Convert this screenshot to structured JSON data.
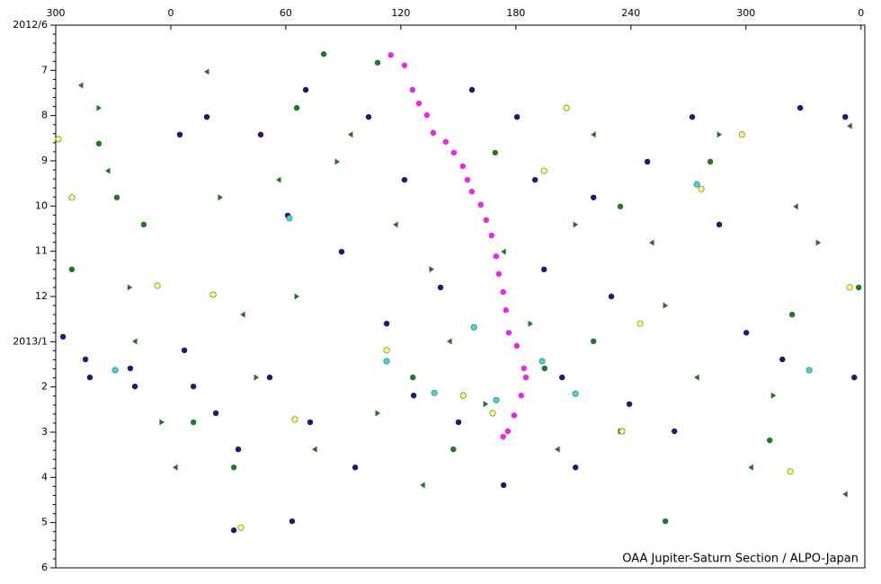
{
  "chart_data": {
    "type": "scatter",
    "credit": "OAA Jupiter-Saturn Section / ALPO-Japan",
    "xlim": [
      300,
      722
    ],
    "xticks": [
      {
        "value": 300,
        "label": "300"
      },
      {
        "value": 360,
        "label": "0"
      },
      {
        "value": 420,
        "label": "60"
      },
      {
        "value": 480,
        "label": "120"
      },
      {
        "value": 540,
        "label": "180"
      },
      {
        "value": 600,
        "label": "240"
      },
      {
        "value": 660,
        "label": "300"
      },
      {
        "value": 720,
        "label": "0"
      }
    ],
    "ylim": [
      0,
      12
    ],
    "yticks": [
      {
        "value": 0,
        "label": "2012/6"
      },
      {
        "value": 1,
        "label": "7"
      },
      {
        "value": 2,
        "label": "8"
      },
      {
        "value": 3,
        "label": "9"
      },
      {
        "value": 4,
        "label": "10"
      },
      {
        "value": 5,
        "label": "11"
      },
      {
        "value": 6,
        "label": "12"
      },
      {
        "value": 7,
        "label": "2013/1"
      },
      {
        "value": 8,
        "label": "2"
      },
      {
        "value": 9,
        "label": "3"
      },
      {
        "value": 10,
        "label": "4"
      },
      {
        "value": 11,
        "label": "5"
      },
      {
        "value": 12,
        "label": "6"
      }
    ],
    "series": [
      {
        "marker": "triangle-left",
        "color": "#2e6b2e",
        "x": [
          313.1,
          327.2,
          341.3,
          362.4,
          378.8,
          397.6,
          416.3,
          435.1,
          453.8,
          477.3,
          491.4,
          505.4,
          533.6,
          561.7,
          580.5,
          610.9,
          634.4,
          662.6,
          686,
          714.1,
          711.8
        ],
        "values": [
          1.33,
          3.22,
          6.99,
          9.78,
          1.03,
          6.4,
          3.42,
          9.38,
          2.42,
          4.41,
          10.17,
          6.99,
          5.01,
          9.38,
          2.42,
          4.81,
          7.79,
          9.78,
          4.01,
          2.23,
          10.37
        ]
      },
      {
        "marker": "triangle-right",
        "color": "#2e6b2e",
        "x": [
          322.5,
          338.6,
          355.3,
          385.8,
          404.6,
          425.7,
          446.8,
          467.9,
          496,
          524.2,
          547.6,
          571.1,
          594.5,
          618,
          646.1,
          674.3,
          697.7
        ],
        "values": [
          1.83,
          5.8,
          8.78,
          3.81,
          7.79,
          6,
          3.02,
          8.58,
          5.4,
          8.38,
          6.6,
          4.41,
          8.98,
          6.2,
          2.42,
          8.19,
          4.81
        ]
      },
      {
        "marker": "circle",
        "color": "#1a1a78",
        "x": [
          303.8,
          315.5,
          317.8,
          338.9,
          341.3,
          364.7,
          367.1,
          371.8,
          378.8,
          383.5,
          395.2,
          406.9,
          411.6,
          421,
          430.4,
          432.7,
          449.1,
          456.2,
          463.2,
          472.6,
          481.9,
          486.7,
          500.7,
          510.1,
          517.1,
          533.6,
          540.6,
          550,
          554.7,
          564.1,
          571.1,
          580.5,
          589.8,
          599.2,
          608.6,
          622.7,
          632,
          646.1,
          660.2,
          679,
          688.3,
          711.8,
          716.5,
          423.3,
          392.9
        ],
        "values": [
          6.89,
          7.39,
          7.79,
          7.59,
          7.99,
          2.42,
          7.19,
          7.99,
          2.03,
          8.58,
          9.38,
          2.42,
          7.79,
          4.21,
          1.43,
          8.78,
          5.01,
          9.78,
          2.03,
          6.6,
          3.42,
          8.19,
          5.8,
          8.78,
          1.43,
          10.17,
          2.03,
          3.42,
          5.4,
          7.79,
          9.78,
          3.81,
          6,
          8.38,
          3.02,
          8.98,
          2.03,
          4.41,
          6.8,
          7.39,
          1.83,
          2.03,
          7.79,
          10.97,
          11.17
        ]
      },
      {
        "marker": "circle",
        "color": "#1f7a1f",
        "x": [
          308.4,
          322.5,
          345.9,
          371.8,
          392.9,
          425.7,
          439.8,
          467.9,
          486.3,
          507.4,
          529.2,
          555,
          580.5,
          594.5,
          618,
          641.4,
          672.4,
          684.1,
          718.8,
          331.9
        ],
        "values": [
          5.4,
          2.62,
          4.41,
          8.78,
          9.78,
          1.83,
          0.64,
          0.83,
          7.79,
          9.38,
          2.82,
          7.59,
          6.99,
          4.01,
          10.97,
          3.02,
          9.18,
          6.4,
          5.8,
          3.81
        ]
      },
      {
        "marker": "circle",
        "color": "#ffff66",
        "x": [
          301.4,
          308.4,
          353,
          382.1,
          424.7,
          472.6,
          512.5,
          527.9,
          554.7,
          566.4,
          595.4,
          604.8,
          636.7,
          657.9,
          683.1,
          714.1,
          396.6
        ],
        "values": [
          2.52,
          3.81,
          5.76,
          5.96,
          8.72,
          7.19,
          8.19,
          8.58,
          3.22,
          1.83,
          8.98,
          6.6,
          3.62,
          2.42,
          9.87,
          5.8,
          11.11
        ]
      },
      {
        "marker": "circle",
        "color": "#33dddd",
        "x": [
          331,
          421.9,
          472.6,
          497.5,
          518.1,
          529.8,
          553.7,
          571.1,
          634.4,
          693
        ],
        "values": [
          7.63,
          4.27,
          7.43,
          8.13,
          6.68,
          8.29,
          7.43,
          8.15,
          3.52,
          7.63
        ]
      },
      {
        "marker": "circle",
        "color": "#ee22ee",
        "x": [
          474.8,
          481.9,
          486.1,
          489.4,
          493.6,
          496.9,
          503.4,
          507.7,
          512.3,
          514.7,
          517,
          521.7,
          524.5,
          527.3,
          529.7,
          531.1,
          533.4,
          534.8,
          536.3,
          540.5,
          544.2,
          545.2,
          542.8,
          539.1,
          535.8,
          533.4
        ],
        "values": [
          0.66,
          0.89,
          1.43,
          1.73,
          1.99,
          2.38,
          2.58,
          2.82,
          3.12,
          3.42,
          3.68,
          3.97,
          4.31,
          4.65,
          5.11,
          5.5,
          5.9,
          6.3,
          6.8,
          7.09,
          7.59,
          7.79,
          8.19,
          8.63,
          8.98,
          9.1
        ]
      }
    ]
  }
}
